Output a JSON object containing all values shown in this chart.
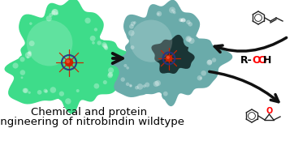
{
  "title_line1": "Chemical and protein",
  "title_line2": "engineering of nitrobindin wildtype",
  "title_fontsize": 9.5,
  "title_color": "#000000",
  "bg_color": "#ffffff",
  "protein1_color": "#3edc8a",
  "protein2_color": "#6aabaa",
  "arrow_color": "#111111",
  "rooh_black": "R-",
  "rooh_red": "OOH",
  "fig_width": 3.78,
  "fig_height": 1.74,
  "dpi": 100
}
